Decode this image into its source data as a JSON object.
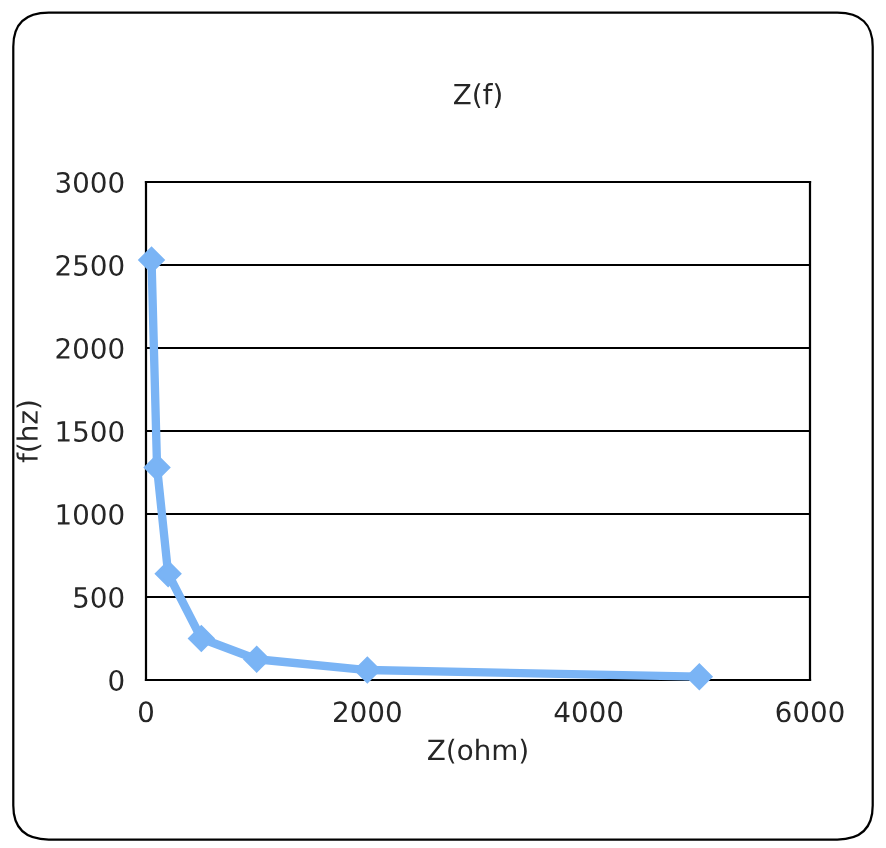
{
  "chart_data": {
    "type": "line",
    "title": "Z(f)",
    "xlabel": "Z(ohm)",
    "ylabel": "f(hz)",
    "x": [
      50,
      100,
      200,
      500,
      1000,
      2000,
      5000
    ],
    "series": [
      {
        "color": "#7ab4f5",
        "values": [
          2530,
          1280,
          640,
          250,
          125,
          60,
          20
        ]
      }
    ],
    "xlim": [
      0,
      6000
    ],
    "xticks": [
      0,
      2000,
      4000,
      6000
    ],
    "ylim": [
      0,
      3000
    ],
    "yticks": [
      0,
      500,
      1000,
      1500,
      2000,
      2500,
      3000
    ],
    "grid": "y",
    "marker": "diamond",
    "line_style": "solid",
    "legend": false
  }
}
